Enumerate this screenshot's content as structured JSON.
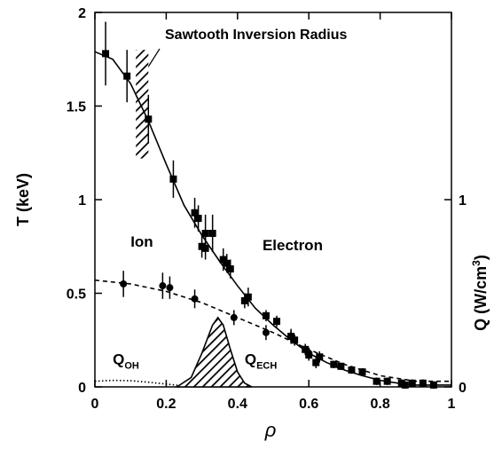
{
  "chart_data": {
    "type": "scatter",
    "xlabel": "ρ",
    "ylabel": "T (keV)",
    "y2label": [
      "Q (W/cm",
      "3",
      ")"
    ],
    "annotation": "Sawtooth Inversion Radius",
    "inversion_band": {
      "x": [
        0.115,
        0.15
      ],
      "y": [
        1.22,
        1.8
      ]
    },
    "xlim": [
      0,
      1
    ],
    "xticks": [
      0,
      0.2,
      0.4,
      0.6,
      0.8,
      1
    ],
    "ylim": [
      0,
      2
    ],
    "yticks": [
      0,
      0.5,
      1,
      1.5,
      2
    ],
    "y2lim": [
      0,
      2
    ],
    "y2ticks": [
      0,
      1
    ],
    "series": [
      {
        "name": "Electron",
        "marker": "square",
        "color": "#000000",
        "x": [
          0.03,
          0.09,
          0.15,
          0.22,
          0.28,
          0.29,
          0.3,
          0.31,
          0.31,
          0.33,
          0.36,
          0.37,
          0.38,
          0.42,
          0.43,
          0.48,
          0.51,
          0.55,
          0.56,
          0.59,
          0.6,
          0.62,
          0.63,
          0.67,
          0.69,
          0.72,
          0.75,
          0.79,
          0.82,
          0.86,
          0.87,
          0.89,
          0.92,
          0.95
        ],
        "values": [
          1.78,
          1.66,
          1.43,
          1.11,
          0.93,
          0.9,
          0.75,
          0.74,
          0.82,
          0.82,
          0.68,
          0.66,
          0.63,
          0.46,
          0.48,
          0.38,
          0.35,
          0.27,
          0.25,
          0.2,
          0.17,
          0.13,
          0.16,
          0.12,
          0.11,
          0.09,
          0.08,
          0.03,
          0.03,
          0.02,
          0.01,
          0.02,
          0.02,
          0.01
        ],
        "errors": [
          0.17,
          0.14,
          0.13,
          0.1,
          0.08,
          0.07,
          0.06,
          0.06,
          0.1,
          0.1,
          0.06,
          0.05,
          0.05,
          0.04,
          0.05,
          0.03,
          0.03,
          0.03,
          0.03,
          0.03,
          0.03,
          0.03,
          0.03,
          0.02,
          0.02,
          0.02,
          0.02,
          0.02,
          0.02,
          0.02,
          0.02,
          0.02,
          0.02,
          0.02
        ]
      },
      {
        "name": "Ion",
        "marker": "circle",
        "color": "#000000",
        "x": [
          0.08,
          0.19,
          0.21,
          0.28,
          0.39,
          0.48,
          0.55,
          0.6
        ],
        "values": [
          0.55,
          0.54,
          0.53,
          0.47,
          0.37,
          0.29,
          0.27,
          0.18
        ],
        "errors": [
          0.07,
          0.07,
          0.06,
          0.05,
          0.04,
          0.04,
          0.04,
          0.03
        ]
      },
      {
        "line": "solid",
        "color": "#000000",
        "x": [
          0,
          0.05,
          0.1,
          0.15,
          0.2,
          0.25,
          0.3,
          0.35,
          0.4,
          0.45,
          0.5,
          0.55,
          0.6,
          0.65,
          0.7,
          0.75,
          0.8,
          0.85,
          0.9,
          0.95,
          1
        ],
        "values": [
          1.79,
          1.75,
          1.62,
          1.42,
          1.19,
          0.97,
          0.81,
          0.67,
          0.54,
          0.42,
          0.33,
          0.25,
          0.18,
          0.13,
          0.09,
          0.06,
          0.035,
          0.02,
          0.01,
          0.01,
          0.01
        ]
      },
      {
        "line": "dashed",
        "color": "#000000",
        "x": [
          0,
          0.1,
          0.2,
          0.3,
          0.4,
          0.5,
          0.6,
          0.7,
          0.8,
          0.9,
          1
        ],
        "values": [
          0.57,
          0.55,
          0.51,
          0.45,
          0.37,
          0.29,
          0.2,
          0.12,
          0.06,
          0.03,
          0.03
        ]
      },
      {
        "name": "Q",
        "name_sub": "OH",
        "line": "dotted",
        "axis": "y2",
        "color": "#000000",
        "x": [
          0,
          0.05,
          0.1,
          0.15,
          0.2,
          0.25,
          0.3
        ],
        "values": [
          0.03,
          0.035,
          0.033,
          0.025,
          0.015,
          0.005,
          0
        ]
      },
      {
        "name": "Q",
        "name_sub": "ECH",
        "fill": "hatch",
        "axis": "y2",
        "color": "#000000",
        "x": [
          0.23,
          0.27,
          0.3,
          0.33,
          0.345,
          0.36,
          0.38,
          0.4,
          0.42,
          0.44
        ],
        "values": [
          0,
          0.05,
          0.18,
          0.33,
          0.37,
          0.33,
          0.2,
          0.08,
          0.02,
          0
        ]
      }
    ]
  }
}
